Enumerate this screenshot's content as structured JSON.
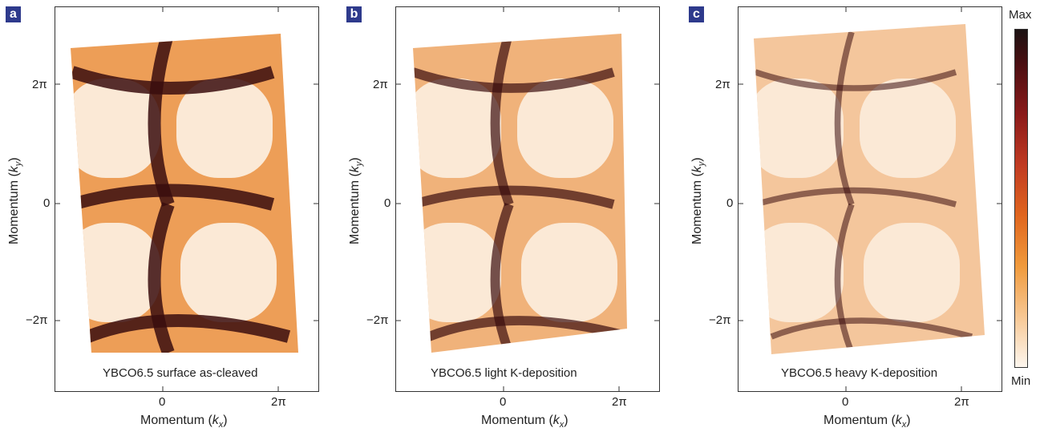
{
  "panels": [
    {
      "label": "a",
      "caption": "YBCO6.5 surface as-cleaved",
      "intensity": "strong",
      "x_ticks": [
        "0",
        "2π"
      ],
      "y_ticks": [
        "2π",
        "0",
        "−2π"
      ],
      "x_axis": {
        "prefix": "Momentum (",
        "symbol": "k",
        "sub": "x",
        "suffix": ")"
      },
      "y_axis": {
        "prefix": "Momentum (",
        "symbol": "k",
        "sub": "y",
        "suffix": ")"
      }
    },
    {
      "label": "b",
      "caption": "YBCO6.5 light K-deposition",
      "intensity": "medium",
      "x_ticks": [
        "0",
        "2π"
      ],
      "y_ticks": [
        "2π",
        "0",
        "−2π"
      ],
      "x_axis": {
        "prefix": "Momentum (",
        "symbol": "k",
        "sub": "x",
        "suffix": ")"
      },
      "y_axis": {
        "prefix": "Momentum (",
        "symbol": "k",
        "sub": "y",
        "suffix": ")"
      }
    },
    {
      "label": "c",
      "caption": "YBCO6.5 heavy K-deposition",
      "intensity": "weak",
      "x_ticks": [
        "0",
        "2π"
      ],
      "y_ticks": [
        "2π",
        "0",
        "−2π"
      ],
      "x_axis": {
        "prefix": "Momentum (",
        "symbol": "k",
        "sub": "x",
        "suffix": ")"
      },
      "y_axis": {
        "prefix": "Momentum (",
        "symbol": "k",
        "sub": "y",
        "suffix": ")"
      }
    }
  ],
  "colorbar": {
    "max_label": "Max",
    "min_label": "Min",
    "colors": [
      "#1c1213",
      "#4a0f12",
      "#8a1a1a",
      "#c03a22",
      "#e0651e",
      "#f09a3c",
      "#f7c793",
      "#fdf6ee"
    ]
  },
  "colors": {
    "label_bg": "#2e3a8c",
    "low": "#fbe9d6",
    "mid": "#e8862d",
    "high": "#3a0d0e"
  }
}
